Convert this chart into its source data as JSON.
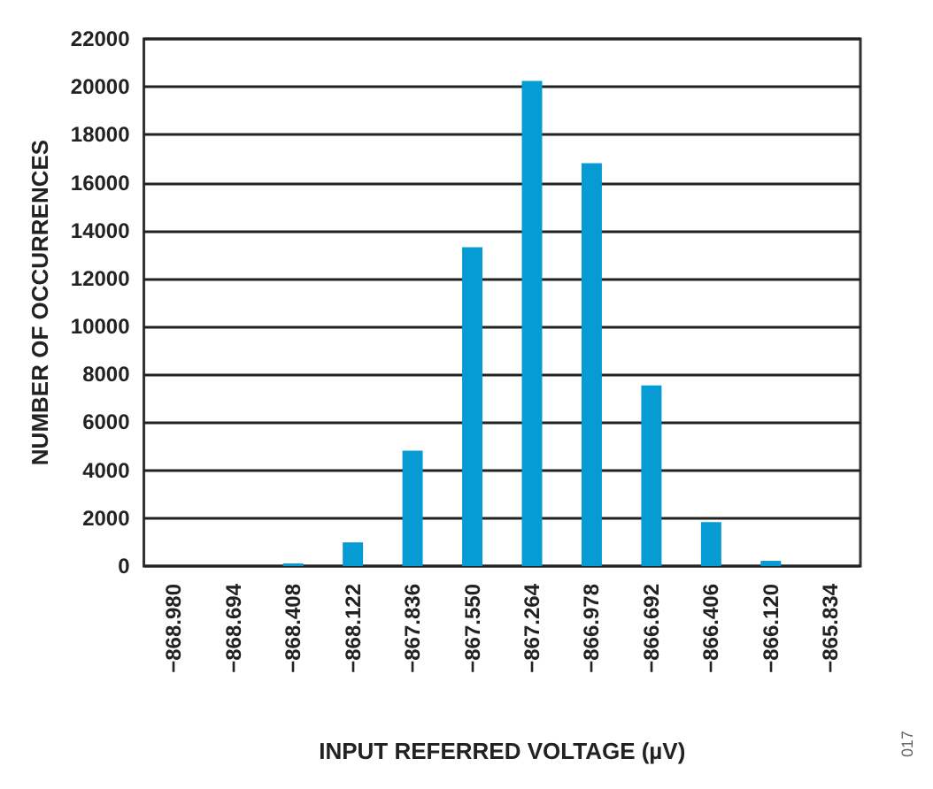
{
  "chart_data": {
    "type": "bar",
    "xlabel": "INPUT REFERRED VOLTAGE (µV)",
    "ylabel": "NUMBER OF OCCURRENCES",
    "categories": [
      "−868.980",
      "−868.694",
      "−868.408",
      "−868.122",
      "−867.836",
      "−867.550",
      "−867.264",
      "−866.978",
      "−866.692",
      "−866.406",
      "−866.120",
      "−865.834"
    ],
    "values": [
      0,
      0,
      110,
      990,
      4820,
      13310,
      20250,
      16810,
      7540,
      1840,
      220,
      0
    ],
    "color": "#069bd2",
    "ylim": [
      0,
      22000
    ],
    "yticks": [
      0,
      2000,
      4000,
      6000,
      8000,
      10000,
      12000,
      14000,
      16000,
      18000,
      20000,
      22000
    ],
    "grid": "y",
    "annotations": [
      "017"
    ]
  }
}
